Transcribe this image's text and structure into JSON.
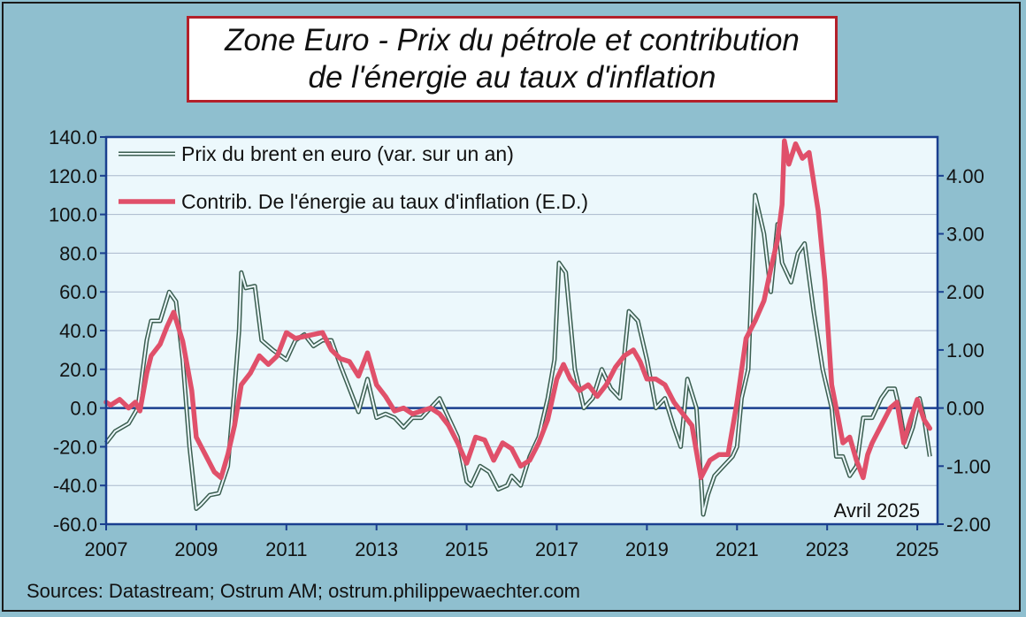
{
  "title": {
    "line1": "Zone Euro - Prix du pétrole et contribution",
    "line2": "de l'énergie au taux d'inflation"
  },
  "source": "Sources: Datastream; Ostrum AM; ostrum.philippewaechter.com",
  "colors": {
    "background": "#8fbfcf",
    "plot_area": "#ecf8fc",
    "axis": "#1a3f8f",
    "brent": "#3b5e50",
    "energy": "#e0506a",
    "title_border": "#b3202a"
  },
  "chart_data": {
    "type": "line",
    "title": "Zone Euro - Prix du pétrole et contribution de l'énergie au taux d'inflation",
    "annotation": "Avril 2025",
    "xlim": [
      2007,
      2025.45
    ],
    "x_ticks": [
      "2007",
      "2009",
      "2011",
      "2013",
      "2015",
      "2017",
      "2019",
      "2021",
      "2023",
      "2025"
    ],
    "y_left": {
      "lim": [
        -60,
        140
      ],
      "ticks": [
        "140.0",
        "120.0",
        "100.0",
        "80.0",
        "60.0",
        "40.0",
        "20.0",
        "0.0",
        "-20.0",
        "-40.0",
        "-60.0"
      ]
    },
    "y_right": {
      "lim": [
        -2,
        4.667
      ],
      "ticks": [
        "4.00",
        "3.00",
        "2.00",
        "1.00",
        "0.00",
        "-1.00",
        "-2.00"
      ]
    },
    "grid": true,
    "legend": "top-left",
    "series": [
      {
        "name": "Prix du brent en euro (var. sur un an)",
        "axis": "left",
        "style": "double",
        "x": [
          2007.0,
          2007.2,
          2007.5,
          2007.7,
          2007.9,
          2008.0,
          2008.2,
          2008.4,
          2008.55,
          2008.7,
          2008.85,
          2009.0,
          2009.1,
          2009.3,
          2009.5,
          2009.7,
          2009.85,
          2009.95,
          2010.0,
          2010.1,
          2010.3,
          2010.45,
          2010.7,
          2011.0,
          2011.2,
          2011.4,
          2011.6,
          2011.8,
          2012.0,
          2012.2,
          2012.4,
          2012.6,
          2012.8,
          2013.0,
          2013.2,
          2013.4,
          2013.6,
          2013.8,
          2014.0,
          2014.2,
          2014.4,
          2014.6,
          2014.8,
          2015.0,
          2015.1,
          2015.3,
          2015.5,
          2015.7,
          2015.9,
          2016.0,
          2016.2,
          2016.4,
          2016.6,
          2016.8,
          2016.95,
          2017.05,
          2017.2,
          2017.4,
          2017.6,
          2017.8,
          2018.0,
          2018.2,
          2018.4,
          2018.6,
          2018.8,
          2019.0,
          2019.2,
          2019.4,
          2019.6,
          2019.75,
          2019.9,
          2020.1,
          2020.25,
          2020.35,
          2020.5,
          2020.7,
          2020.9,
          2021.0,
          2021.1,
          2021.25,
          2021.4,
          2021.6,
          2021.75,
          2021.9,
          2022.0,
          2022.2,
          2022.35,
          2022.5,
          2022.7,
          2022.9,
          2023.1,
          2023.2,
          2023.35,
          2023.5,
          2023.65,
          2023.8,
          2024.0,
          2024.2,
          2024.35,
          2024.5,
          2024.6,
          2024.75,
          2024.9,
          2025.05,
          2025.15,
          2025.28
        ],
        "y": [
          -18,
          -12,
          -8,
          0,
          35,
          45,
          45,
          60,
          55,
          25,
          -20,
          -52,
          -50,
          -45,
          -44,
          -30,
          10,
          40,
          70,
          62,
          63,
          35,
          30,
          25,
          35,
          38,
          32,
          35,
          35,
          22,
          10,
          -2,
          15,
          -5,
          -3,
          -5,
          -10,
          -5,
          -5,
          0,
          5,
          -5,
          -15,
          -38,
          -40,
          -30,
          -33,
          -42,
          -40,
          -35,
          -40,
          -25,
          -15,
          5,
          25,
          75,
          70,
          20,
          0,
          5,
          20,
          10,
          5,
          50,
          45,
          25,
          0,
          5,
          -10,
          -20,
          15,
          0,
          -55,
          -45,
          -35,
          -30,
          -25,
          -20,
          5,
          20,
          110,
          90,
          60,
          95,
          75,
          65,
          80,
          85,
          50,
          20,
          0,
          -25,
          -25,
          -35,
          -30,
          -5,
          -5,
          5,
          10,
          10,
          0,
          -20,
          -10,
          5,
          -5,
          -25
        ]
      },
      {
        "name": "Contrib. De l'énergie au taux d'inflation (E.D.)",
        "axis": "right",
        "style": "solid",
        "x": [
          2007.0,
          2007.1,
          2007.3,
          2007.5,
          2007.65,
          2007.75,
          2007.9,
          2008.0,
          2008.2,
          2008.35,
          2008.5,
          2008.7,
          2008.9,
          2009.0,
          2009.2,
          2009.4,
          2009.55,
          2009.7,
          2009.85,
          2010.0,
          2010.2,
          2010.4,
          2010.6,
          2010.8,
          2011.0,
          2011.2,
          2011.5,
          2011.8,
          2012.0,
          2012.2,
          2012.4,
          2012.6,
          2012.8,
          2013.0,
          2013.2,
          2013.4,
          2013.6,
          2013.8,
          2014.0,
          2014.2,
          2014.4,
          2014.6,
          2014.8,
          2015.0,
          2015.2,
          2015.4,
          2015.6,
          2015.8,
          2016.0,
          2016.2,
          2016.4,
          2016.6,
          2016.8,
          2017.0,
          2017.15,
          2017.3,
          2017.5,
          2017.7,
          2017.9,
          2018.1,
          2018.3,
          2018.5,
          2018.7,
          2018.85,
          2019.0,
          2019.2,
          2019.4,
          2019.6,
          2019.8,
          2020.0,
          2020.2,
          2020.4,
          2020.6,
          2020.8,
          2021.0,
          2021.2,
          2021.4,
          2021.6,
          2021.75,
          2021.9,
          2022.0,
          2022.05,
          2022.15,
          2022.3,
          2022.45,
          2022.6,
          2022.8,
          2022.95,
          2023.1,
          2023.2,
          2023.35,
          2023.5,
          2023.65,
          2023.8,
          2023.9,
          2024.0,
          2024.2,
          2024.4,
          2024.55,
          2024.7,
          2024.85,
          2025.0,
          2025.15,
          2025.28
        ],
        "y": [
          0.1,
          0.05,
          0.15,
          0.0,
          0.1,
          -0.05,
          0.6,
          0.9,
          1.1,
          1.4,
          1.65,
          1.15,
          0.3,
          -0.5,
          -0.8,
          -1.1,
          -1.2,
          -0.8,
          -0.3,
          0.4,
          0.6,
          0.9,
          0.75,
          0.9,
          1.3,
          1.2,
          1.25,
          1.3,
          1.0,
          0.85,
          0.8,
          0.55,
          0.95,
          0.4,
          0.2,
          -0.05,
          0.0,
          -0.1,
          -0.05,
          0.0,
          -0.1,
          -0.3,
          -0.6,
          -0.95,
          -0.5,
          -0.55,
          -0.9,
          -0.6,
          -0.7,
          -1.0,
          -0.9,
          -0.6,
          -0.2,
          0.5,
          0.75,
          0.5,
          0.3,
          0.4,
          0.2,
          0.4,
          0.7,
          0.9,
          1.0,
          0.8,
          0.5,
          0.5,
          0.4,
          0.1,
          -0.1,
          -0.3,
          -1.2,
          -0.9,
          -0.8,
          -0.8,
          0.1,
          1.2,
          1.5,
          1.85,
          2.4,
          2.9,
          3.5,
          4.6,
          4.2,
          4.55,
          4.3,
          4.4,
          3.4,
          2.2,
          0.4,
          0.0,
          -0.6,
          -0.5,
          -0.9,
          -1.2,
          -0.8,
          -0.6,
          -0.3,
          0.0,
          0.1,
          -0.6,
          -0.2,
          0.15,
          -0.2,
          -0.35
        ]
      }
    ]
  }
}
